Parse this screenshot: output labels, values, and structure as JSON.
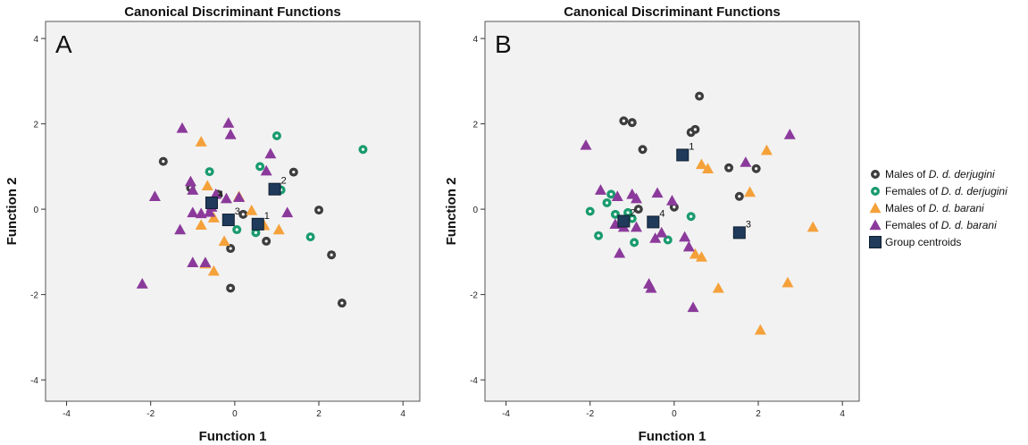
{
  "colors": {
    "males_derjugini": "#3d3d3d",
    "females_derjugini": "#1a9b6e",
    "males_barani": "#f5a13a",
    "females_barani": "#8b3a9b",
    "centroid": "#1f3a5a",
    "plot_bg": "#f2f2f2"
  },
  "legend": {
    "placement": "right",
    "items": [
      {
        "key": "males_derjugini",
        "prefix": "Males of ",
        "species": "D. d. derjugini",
        "marker": "circle"
      },
      {
        "key": "females_derjugini",
        "prefix": "Females of ",
        "species": "D. d. derjugini",
        "marker": "circle"
      },
      {
        "key": "males_barani",
        "prefix": "Males of ",
        "species": "D. d. barani",
        "marker": "triangle"
      },
      {
        "key": "females_barani",
        "prefix": "Females of ",
        "species": "D. d. barani",
        "marker": "triangle"
      },
      {
        "key": "centroid",
        "prefix": "Group centroids",
        "species": "",
        "marker": "square"
      }
    ]
  },
  "chart_data": [
    {
      "type": "scatter",
      "panel_label": "A",
      "title": "Canonical Discriminant Functions",
      "xlabel": "Function 1",
      "ylabel": "Function 2",
      "xlim": [
        -4.5,
        4.4
      ],
      "ylim": [
        -4.5,
        4.4
      ],
      "xticks": [
        -4,
        -2,
        0,
        2,
        4
      ],
      "yticks": [
        -4,
        -2,
        0,
        2,
        4
      ],
      "grid": false,
      "series": [
        {
          "key": "males_derjugini",
          "points": [
            [
              -1.7,
              1.12
            ],
            [
              -1.05,
              0.5
            ],
            [
              -0.4,
              0.35
            ],
            [
              0.2,
              -0.12
            ],
            [
              0.75,
              -0.75
            ],
            [
              1.4,
              0.87
            ],
            [
              2.0,
              -0.02
            ],
            [
              2.3,
              -1.07
            ],
            [
              2.55,
              -2.2
            ],
            [
              -0.1,
              -0.92
            ],
            [
              -0.1,
              -1.85
            ]
          ]
        },
        {
          "key": "females_derjugini",
          "points": [
            [
              -0.6,
              0.88
            ],
            [
              0.6,
              1.0
            ],
            [
              1.0,
              1.72
            ],
            [
              1.1,
              0.45
            ],
            [
              3.05,
              1.4
            ],
            [
              1.8,
              -0.65
            ],
            [
              0.5,
              -0.55
            ],
            [
              0.05,
              -0.48
            ]
          ]
        },
        {
          "key": "males_barani",
          "points": [
            [
              -0.8,
              1.58
            ],
            [
              -0.65,
              0.55
            ],
            [
              -0.5,
              -0.2
            ],
            [
              -0.8,
              -0.37
            ],
            [
              -0.25,
              -0.75
            ],
            [
              0.1,
              0.3
            ],
            [
              0.4,
              -0.03
            ],
            [
              0.7,
              -0.38
            ],
            [
              1.05,
              -0.48
            ],
            [
              -0.5,
              -1.45
            ],
            [
              -0.7,
              -1.28
            ]
          ]
        },
        {
          "key": "females_barani",
          "points": [
            [
              -1.25,
              1.9
            ],
            [
              -0.15,
              2.02
            ],
            [
              -0.1,
              1.75
            ],
            [
              -1.9,
              0.3
            ],
            [
              -1.05,
              0.65
            ],
            [
              -1.0,
              0.45
            ],
            [
              -0.55,
              0.05
            ],
            [
              -0.2,
              0.25
            ],
            [
              0.1,
              0.28
            ],
            [
              0.75,
              0.9
            ],
            [
              0.85,
              1.3
            ],
            [
              1.25,
              -0.08
            ],
            [
              -1.3,
              -0.48
            ],
            [
              -1.0,
              -0.08
            ],
            [
              -0.8,
              -0.1
            ],
            [
              -0.6,
              -0.07
            ],
            [
              -0.45,
              0.35
            ],
            [
              -1.0,
              -1.25
            ],
            [
              -0.7,
              -1.25
            ],
            [
              -2.2,
              -1.75
            ]
          ]
        },
        {
          "key": "centroid",
          "points": [
            [
              -0.55,
              0.15
            ],
            [
              0.95,
              0.47
            ],
            [
              -0.15,
              -0.25
            ],
            [
              0.55,
              -0.35
            ]
          ]
        }
      ],
      "centroid_labels": [
        "4",
        "2",
        "3",
        "1"
      ]
    },
    {
      "type": "scatter",
      "panel_label": "B",
      "title": "Canonical Discriminant Functions",
      "xlabel": "Function 1",
      "ylabel": "Function 2",
      "xlim": [
        -4.5,
        4.4
      ],
      "ylim": [
        -4.5,
        4.4
      ],
      "xticks": [
        -4,
        -2,
        0,
        2,
        4
      ],
      "yticks": [
        -4,
        -2,
        0,
        2,
        4
      ],
      "grid": false,
      "series": [
        {
          "key": "males_derjugini",
          "points": [
            [
              -1.2,
              2.07
            ],
            [
              -1.0,
              2.03
            ],
            [
              -0.75,
              1.4
            ],
            [
              0.4,
              1.8
            ],
            [
              0.5,
              1.87
            ],
            [
              0.6,
              2.65
            ],
            [
              1.3,
              0.97
            ],
            [
              1.95,
              0.95
            ],
            [
              1.55,
              0.3
            ],
            [
              0.0,
              0.05
            ],
            [
              -0.85,
              0.0
            ]
          ]
        },
        {
          "key": "females_derjugini",
          "points": [
            [
              -2.0,
              -0.05
            ],
            [
              -1.6,
              0.15
            ],
            [
              -1.5,
              0.35
            ],
            [
              -1.4,
              -0.12
            ],
            [
              -1.0,
              -0.22
            ],
            [
              -1.8,
              -0.62
            ],
            [
              -0.95,
              -0.78
            ],
            [
              -0.15,
              -0.72
            ],
            [
              0.4,
              -0.17
            ],
            [
              -1.1,
              -0.08
            ]
          ]
        },
        {
          "key": "males_barani",
          "points": [
            [
              0.65,
              1.05
            ],
            [
              0.8,
              0.95
            ],
            [
              1.8,
              0.4
            ],
            [
              2.2,
              1.38
            ],
            [
              3.3,
              -0.42
            ],
            [
              0.5,
              -1.05
            ],
            [
              0.65,
              -1.12
            ],
            [
              1.05,
              -1.85
            ],
            [
              2.05,
              -2.83
            ],
            [
              2.7,
              -1.72
            ]
          ]
        },
        {
          "key": "females_barani",
          "points": [
            [
              -2.1,
              1.5
            ],
            [
              -1.75,
              0.45
            ],
            [
              -1.35,
              0.3
            ],
            [
              -1.0,
              0.35
            ],
            [
              -0.9,
              0.25
            ],
            [
              -0.4,
              0.38
            ],
            [
              -0.05,
              0.2
            ],
            [
              1.7,
              1.1
            ],
            [
              2.75,
              1.75
            ],
            [
              -1.4,
              -0.35
            ],
            [
              -1.2,
              -0.42
            ],
            [
              -0.9,
              -0.42
            ],
            [
              -0.45,
              -0.68
            ],
            [
              -0.3,
              -0.55
            ],
            [
              0.25,
              -0.65
            ],
            [
              0.35,
              -0.88
            ],
            [
              -1.3,
              -1.03
            ],
            [
              -0.6,
              -1.75
            ],
            [
              -0.55,
              -1.85
            ],
            [
              0.45,
              -2.3
            ]
          ]
        },
        {
          "key": "centroid",
          "points": [
            [
              0.2,
              1.27
            ],
            [
              -1.2,
              -0.28
            ],
            [
              -0.5,
              -0.3
            ],
            [
              1.55,
              -0.55
            ]
          ]
        }
      ],
      "centroid_labels": [
        "1",
        "2",
        "4",
        "3"
      ]
    }
  ]
}
